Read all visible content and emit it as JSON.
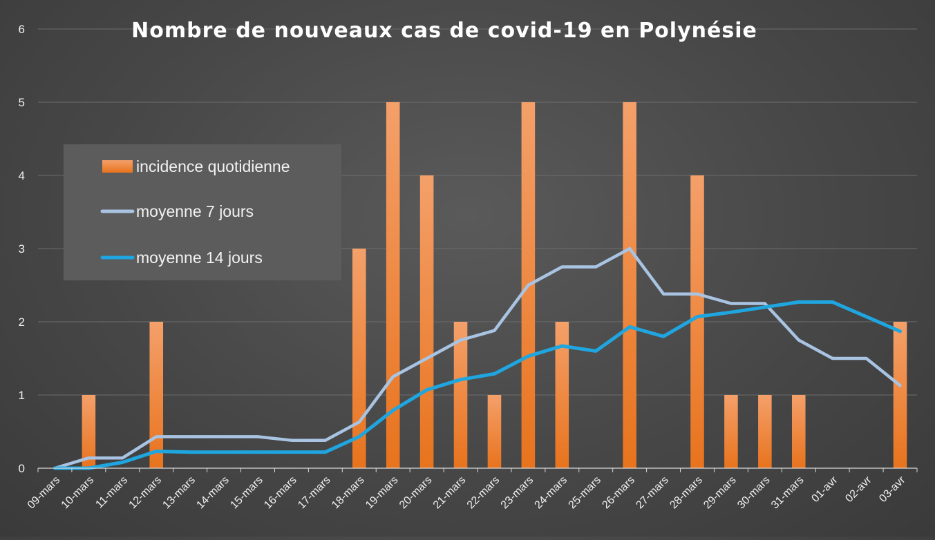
{
  "chart_data": {
    "type": "bar",
    "title": "Nombre de nouveaux cas de covid-19 en Polynésie",
    "xlabel": "",
    "ylabel": "",
    "ylim": [
      0,
      6
    ],
    "y_ticks": [
      0,
      1,
      2,
      3,
      4,
      5,
      6
    ],
    "grid": true,
    "legend_position": "left",
    "categories": [
      "09-mars",
      "10-mars",
      "11-mars",
      "12-mars",
      "13-mars",
      "14-mars",
      "15-mars",
      "16-mars",
      "17-mars",
      "18-mars",
      "19-mars",
      "20-mars",
      "21-mars",
      "22-mars",
      "23-mars",
      "24-mars",
      "25-mars",
      "26-mars",
      "27-mars",
      "28-mars",
      "29-mars",
      "30-mars",
      "31-mars",
      "01-avr",
      "02-avr",
      "03-avr"
    ],
    "series": [
      {
        "name": "incidence quotidienne",
        "type": "bar",
        "color": "#f07a2a",
        "values": [
          0,
          1,
          0,
          2,
          0,
          0,
          0,
          0,
          0,
          3,
          5,
          4,
          2,
          1,
          5,
          2,
          0,
          5,
          0,
          4,
          1,
          1,
          1,
          0,
          0,
          2
        ]
      },
      {
        "name": "moyenne 7 jours",
        "type": "line",
        "color": "#a9c4e3",
        "values": [
          0,
          0.14,
          0.14,
          0.43,
          0.43,
          0.43,
          0.43,
          0.38,
          0.38,
          0.63,
          1.25,
          1.5,
          1.75,
          1.88,
          2.5,
          2.75,
          2.75,
          3.0,
          2.38,
          2.38,
          2.25,
          2.25,
          1.75,
          1.5,
          1.5,
          1.13
        ]
      },
      {
        "name": "moyenne 14 jours",
        "type": "line",
        "color": "#1fa6e0",
        "values": [
          0,
          0,
          0.08,
          0.23,
          0.22,
          0.22,
          0.22,
          0.22,
          0.22,
          0.43,
          0.79,
          1.07,
          1.21,
          1.29,
          1.53,
          1.67,
          1.6,
          1.93,
          1.8,
          2.07,
          2.13,
          2.2,
          2.27,
          2.27,
          2.07,
          1.87
        ]
      }
    ]
  }
}
